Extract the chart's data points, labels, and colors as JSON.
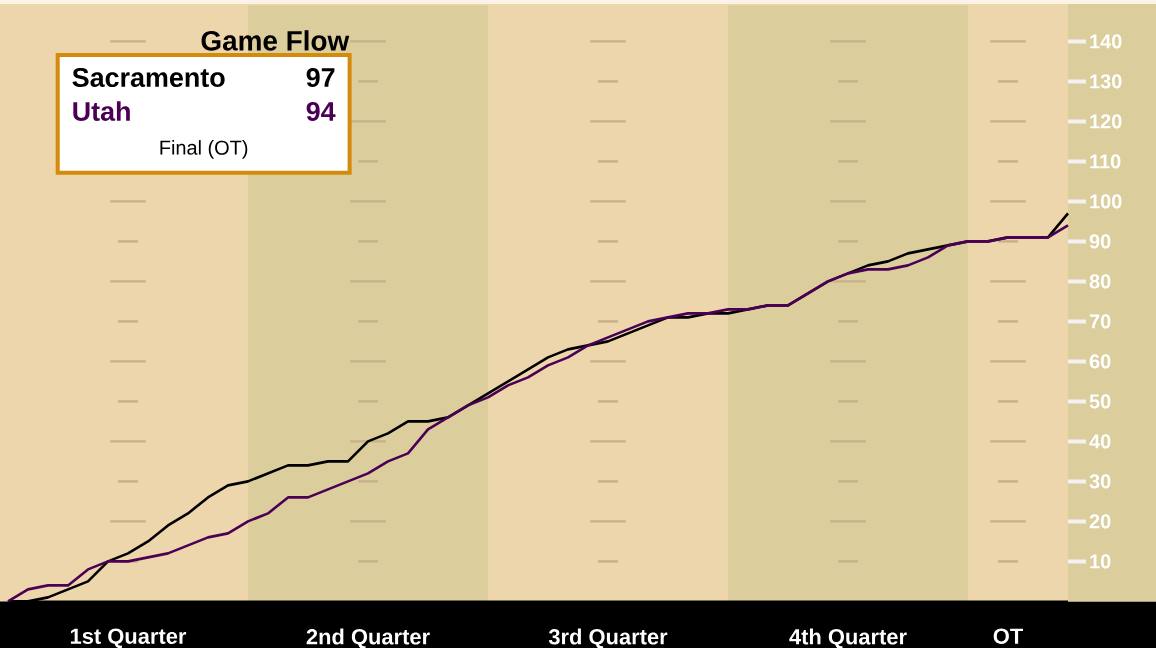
{
  "chart_data": {
    "type": "line",
    "title": "Game Flow",
    "categories": [
      null,
      null,
      null,
      null,
      null,
      null,
      "1st Quarter",
      null,
      null,
      null,
      null,
      null,
      null,
      null,
      null,
      null,
      null,
      null,
      "2nd Quarter",
      null,
      null,
      null,
      null,
      null,
      null,
      null,
      null,
      null,
      null,
      null,
      "3rd Quarter",
      null,
      null,
      null,
      null,
      null,
      null,
      null,
      null,
      null,
      null,
      null,
      "4th Quarter",
      null,
      null,
      null,
      null,
      null,
      null,
      null,
      "OT",
      null,
      null,
      null
    ],
    "series": [
      {
        "name": "Sacramento",
        "color": "#000000",
        "values": [
          0,
          0,
          1,
          3,
          5,
          10,
          12,
          15,
          19,
          22,
          26,
          29,
          30,
          32,
          34,
          34,
          35,
          35,
          40,
          42,
          45,
          45,
          46,
          49,
          52,
          55,
          58,
          61,
          63,
          64,
          65,
          67,
          69,
          71,
          71,
          72,
          72,
          73,
          74,
          74,
          77,
          80,
          82,
          84,
          85,
          87,
          88,
          89,
          90,
          90,
          91,
          91,
          91,
          97
        ]
      },
      {
        "name": "Utah",
        "color": "#4b0055",
        "values": [
          0,
          3,
          4,
          4,
          8,
          10,
          10,
          11,
          12,
          14,
          16,
          17,
          20,
          22,
          26,
          26,
          28,
          30,
          32,
          35,
          37,
          43,
          46,
          49,
          51,
          54,
          56,
          59,
          61,
          64,
          66,
          68,
          70,
          71,
          72,
          72,
          73,
          73,
          74,
          74,
          77,
          80,
          82,
          83,
          83,
          84,
          86,
          89,
          90,
          90,
          91,
          91,
          91,
          94
        ]
      }
    ],
    "annotations": [
      "97",
      "94",
      "Final (OT)"
    ],
    "ylim": [
      0,
      149
    ],
    "yticks": [
      10,
      20,
      30,
      40,
      50,
      60,
      70,
      80,
      90,
      100,
      110,
      120,
      130,
      140
    ],
    "grid": false,
    "legend": "top left",
    "marker": "none",
    "line_style": "solid"
  }
}
